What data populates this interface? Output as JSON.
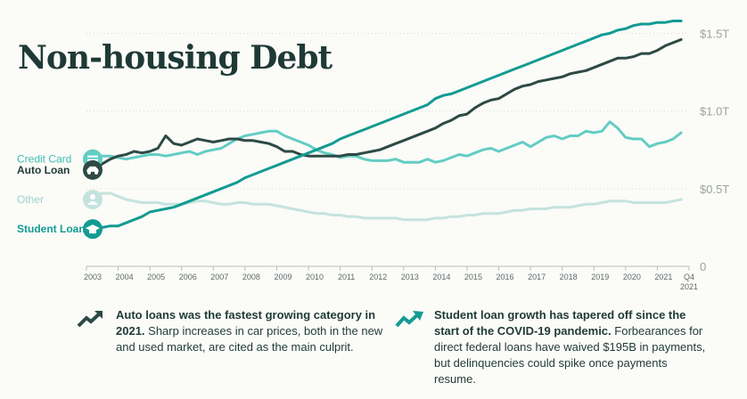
{
  "title": "Non-housing Debt",
  "chart_data": {
    "type": "line",
    "title": "Non-housing Debt",
    "xlabel": "",
    "ylabel": "",
    "ylim": [
      0,
      1.6
    ],
    "x": [
      2003.0,
      2003.25,
      2003.5,
      2003.75,
      2004.0,
      2004.25,
      2004.5,
      2004.75,
      2005.0,
      2005.25,
      2005.5,
      2005.75,
      2006.0,
      2006.25,
      2006.5,
      2006.75,
      2007.0,
      2007.25,
      2007.5,
      2007.75,
      2008.0,
      2008.25,
      2008.5,
      2008.75,
      2009.0,
      2009.25,
      2009.5,
      2009.75,
      2010.0,
      2010.25,
      2010.5,
      2010.75,
      2011.0,
      2011.25,
      2011.5,
      2011.75,
      2012.0,
      2012.25,
      2012.5,
      2012.75,
      2013.0,
      2013.25,
      2013.5,
      2013.75,
      2014.0,
      2014.25,
      2014.5,
      2014.75,
      2015.0,
      2015.25,
      2015.5,
      2015.75,
      2016.0,
      2016.25,
      2016.5,
      2016.75,
      2017.0,
      2017.25,
      2017.5,
      2017.75,
      2018.0,
      2018.25,
      2018.5,
      2018.75,
      2019.0,
      2019.25,
      2019.5,
      2019.75,
      2020.0,
      2020.25,
      2020.5,
      2020.75,
      2021.0,
      2021.25,
      2021.5,
      2021.75
    ],
    "series": [
      {
        "name": "Credit Card",
        "color": "#63cdc4",
        "values": [
          0.69,
          0.7,
          0.71,
          0.71,
          0.7,
          0.69,
          0.7,
          0.71,
          0.72,
          0.72,
          0.71,
          0.72,
          0.73,
          0.74,
          0.72,
          0.74,
          0.75,
          0.76,
          0.79,
          0.82,
          0.84,
          0.85,
          0.86,
          0.87,
          0.87,
          0.84,
          0.82,
          0.8,
          0.78,
          0.75,
          0.73,
          0.72,
          0.7,
          0.71,
          0.71,
          0.69,
          0.68,
          0.68,
          0.68,
          0.69,
          0.67,
          0.67,
          0.67,
          0.69,
          0.67,
          0.68,
          0.7,
          0.72,
          0.71,
          0.73,
          0.75,
          0.76,
          0.74,
          0.76,
          0.78,
          0.8,
          0.77,
          0.8,
          0.83,
          0.84,
          0.82,
          0.84,
          0.84,
          0.87,
          0.86,
          0.87,
          0.93,
          0.89,
          0.83,
          0.82,
          0.82,
          0.77,
          0.79,
          0.8,
          0.82,
          0.86
        ]
      },
      {
        "name": "Auto Loan",
        "color": "#2d4a45",
        "values": [
          0.62,
          0.62,
          0.66,
          0.69,
          0.71,
          0.72,
          0.74,
          0.73,
          0.74,
          0.76,
          0.84,
          0.79,
          0.78,
          0.8,
          0.82,
          0.81,
          0.8,
          0.81,
          0.82,
          0.82,
          0.81,
          0.81,
          0.8,
          0.79,
          0.77,
          0.74,
          0.74,
          0.72,
          0.71,
          0.71,
          0.71,
          0.71,
          0.71,
          0.72,
          0.72,
          0.73,
          0.74,
          0.75,
          0.77,
          0.79,
          0.81,
          0.83,
          0.85,
          0.87,
          0.89,
          0.92,
          0.94,
          0.97,
          0.98,
          1.02,
          1.05,
          1.07,
          1.08,
          1.11,
          1.14,
          1.16,
          1.17,
          1.19,
          1.2,
          1.21,
          1.22,
          1.24,
          1.25,
          1.26,
          1.28,
          1.3,
          1.32,
          1.34,
          1.34,
          1.35,
          1.37,
          1.37,
          1.39,
          1.42,
          1.44,
          1.46
        ]
      },
      {
        "name": "Other",
        "color": "#c5e3de",
        "values": [
          0.43,
          0.45,
          0.47,
          0.47,
          0.45,
          0.43,
          0.42,
          0.41,
          0.41,
          0.41,
          0.4,
          0.4,
          0.4,
          0.41,
          0.42,
          0.42,
          0.41,
          0.4,
          0.4,
          0.41,
          0.41,
          0.4,
          0.4,
          0.4,
          0.39,
          0.38,
          0.37,
          0.36,
          0.35,
          0.34,
          0.34,
          0.33,
          0.33,
          0.32,
          0.32,
          0.31,
          0.31,
          0.31,
          0.31,
          0.31,
          0.3,
          0.3,
          0.3,
          0.3,
          0.31,
          0.31,
          0.32,
          0.32,
          0.33,
          0.33,
          0.34,
          0.34,
          0.34,
          0.35,
          0.36,
          0.36,
          0.37,
          0.37,
          0.37,
          0.38,
          0.38,
          0.38,
          0.39,
          0.4,
          0.4,
          0.41,
          0.42,
          0.42,
          0.42,
          0.41,
          0.41,
          0.41,
          0.41,
          0.41,
          0.42,
          0.43
        ]
      },
      {
        "name": "Student Loan",
        "color": "#139b92",
        "values": [
          0.24,
          0.25,
          0.25,
          0.26,
          0.26,
          0.28,
          0.3,
          0.32,
          0.35,
          0.36,
          0.37,
          0.38,
          0.4,
          0.42,
          0.44,
          0.46,
          0.48,
          0.5,
          0.52,
          0.54,
          0.57,
          0.59,
          0.61,
          0.63,
          0.65,
          0.67,
          0.69,
          0.71,
          0.73,
          0.75,
          0.77,
          0.79,
          0.82,
          0.84,
          0.86,
          0.88,
          0.9,
          0.92,
          0.94,
          0.96,
          0.98,
          1.0,
          1.02,
          1.04,
          1.08,
          1.1,
          1.11,
          1.13,
          1.15,
          1.17,
          1.19,
          1.21,
          1.23,
          1.25,
          1.27,
          1.29,
          1.31,
          1.33,
          1.35,
          1.37,
          1.39,
          1.41,
          1.43,
          1.45,
          1.47,
          1.49,
          1.5,
          1.52,
          1.53,
          1.55,
          1.56,
          1.56,
          1.57,
          1.57,
          1.58,
          1.58
        ]
      }
    ],
    "x_ticks": [
      "2003",
      "2004",
      "2005",
      "2006",
      "2007",
      "2008",
      "2009",
      "2010",
      "2011",
      "2012",
      "2013",
      "2014",
      "2015",
      "2016",
      "2017",
      "2018",
      "2019",
      "2020",
      "2021"
    ],
    "x_end_label": [
      "Q4",
      "2021"
    ],
    "y_ticks": [
      {
        "value": 0,
        "label": "0"
      },
      {
        "value": 0.5,
        "label": "$0.5T"
      },
      {
        "value": 1.0,
        "label": "$1.0T"
      },
      {
        "value": 1.5,
        "label": "$1.5T"
      }
    ]
  },
  "notes": {
    "left": {
      "bold": "Auto loans was the fastest growing category in 2021.",
      "text": " Sharp increases in car prices, both in the new and used market, are cited as the main culprit."
    },
    "right": {
      "bold": "Student loan growth has tapered off since the start of the COVID-19 pandemic.",
      "text": " Forbearances for direct federal loans have waived $195B in payments, but delinquencies could spike once payments resume."
    }
  }
}
